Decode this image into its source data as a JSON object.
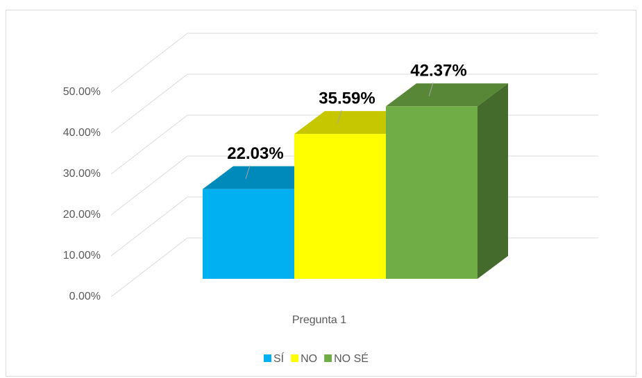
{
  "chart_data": {
    "type": "bar3d",
    "categories": [
      "Pregunta 1"
    ],
    "series": [
      {
        "name": "SÍ",
        "color": "#00b0f0",
        "values": [
          22.03
        ],
        "value_labels": [
          "22.03%"
        ]
      },
      {
        "name": "NO",
        "color": "#ffff00",
        "values": [
          35.59
        ],
        "value_labels": [
          "35.59%"
        ]
      },
      {
        "name": "NO SÉ",
        "color": "#70ad47",
        "values": [
          42.37
        ],
        "value_labels": [
          "42.37%"
        ]
      }
    ],
    "ylim": [
      0,
      50
    ],
    "yticks": [
      {
        "value": 0,
        "label": "0.00%"
      },
      {
        "value": 10,
        "label": "10.00%"
      },
      {
        "value": 20,
        "label": "20.00%"
      },
      {
        "value": 30,
        "label": "30.00%"
      },
      {
        "value": 40,
        "label": "40.00%"
      },
      {
        "value": 50,
        "label": "50.00%"
      }
    ],
    "grid": true,
    "legend": "bottom"
  }
}
